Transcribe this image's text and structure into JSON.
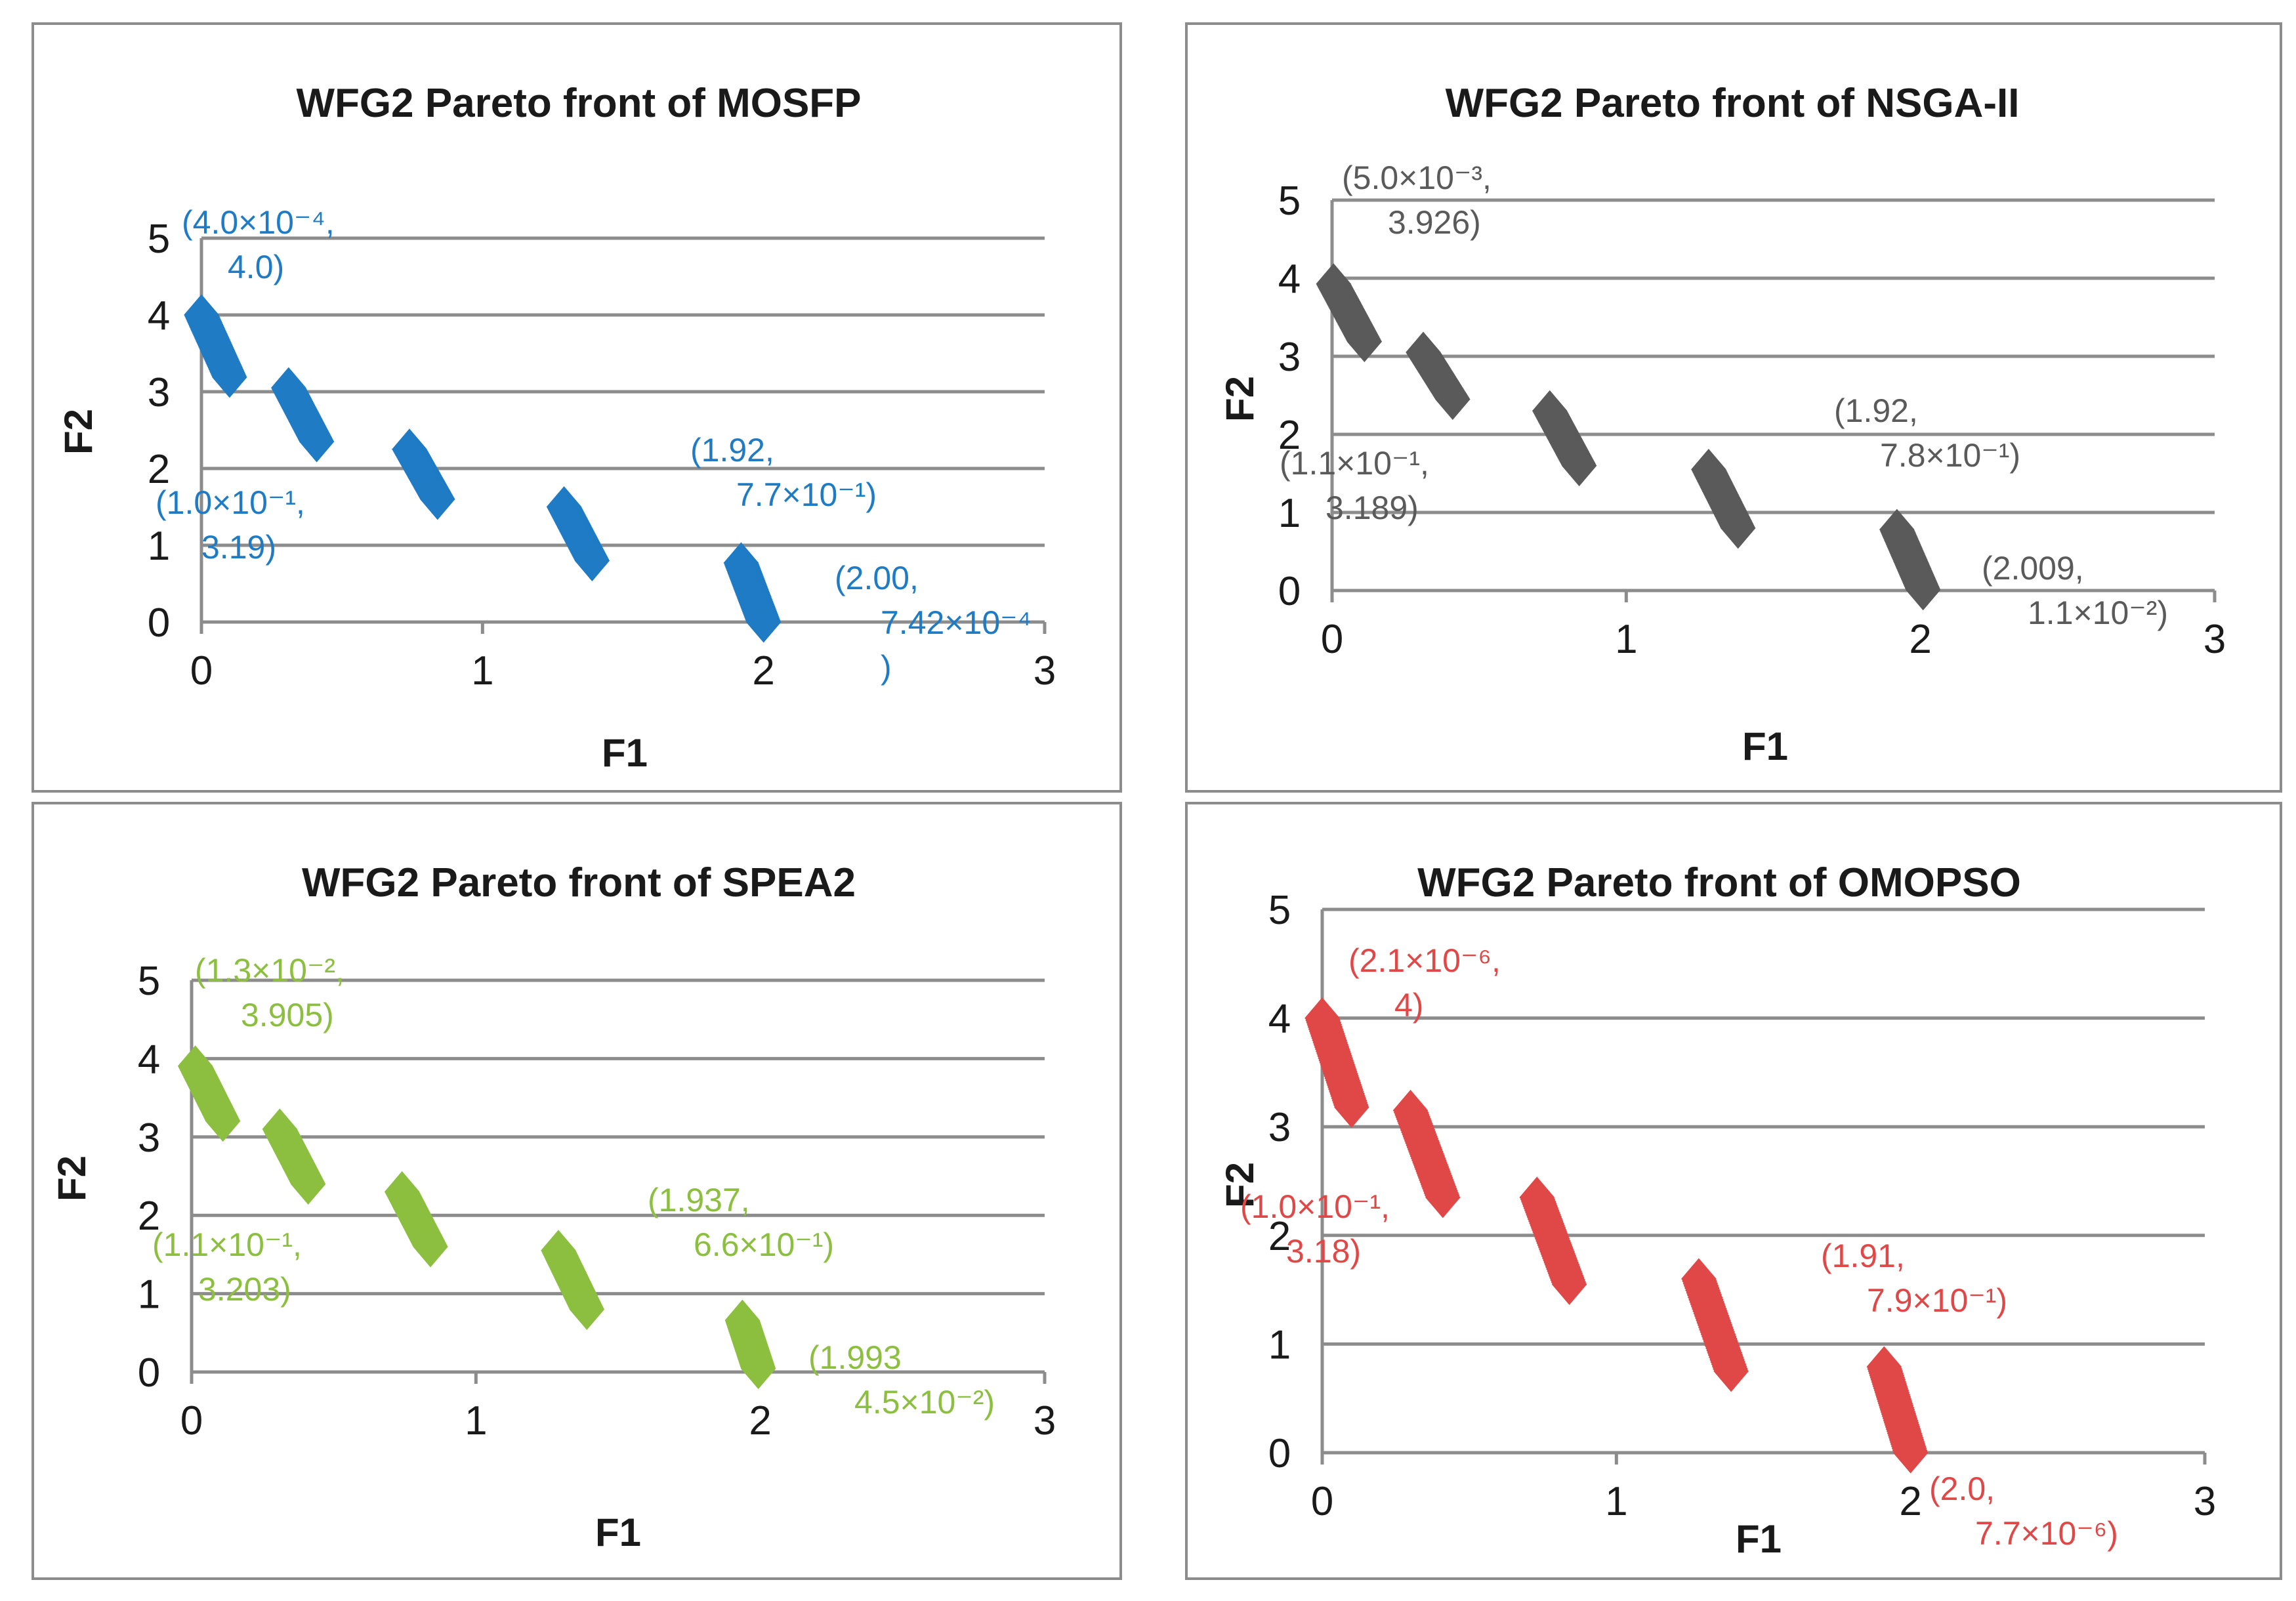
{
  "chart_data": [
    {
      "type": "scatter",
      "title": "WFG2 Pareto front of MOSFP",
      "xlabel": "F1",
      "ylabel": "F2",
      "xlim": [
        0,
        3
      ],
      "ylim": [
        0,
        5
      ],
      "xticks": [
        "0",
        "1",
        "2",
        "3"
      ],
      "yticks": [
        "0",
        "1",
        "2",
        "3",
        "4",
        "5"
      ],
      "color": "#1e7bc4",
      "series": [
        {
          "name": "MOSFP",
          "segments": [
            {
              "x": [
                0.0,
                0.1
              ],
              "y": [
                4.0,
                3.19
              ]
            },
            {
              "x": [
                0.31,
                0.41
              ],
              "y": [
                3.05,
                2.35
              ]
            },
            {
              "x": [
                0.74,
                0.84
              ],
              "y": [
                2.25,
                1.6
              ]
            },
            {
              "x": [
                1.29,
                1.39
              ],
              "y": [
                1.5,
                0.8
              ]
            },
            {
              "x": [
                1.92,
                2.0
              ],
              "y": [
                0.77,
                0.0
              ]
            }
          ]
        }
      ],
      "annotations": [
        {
          "lines": [
            "(4.0×10⁻⁴,",
            "4.0)"
          ]
        },
        {
          "lines": [
            "(1.0×10⁻¹,",
            "3.19)"
          ]
        },
        {
          "lines": [
            "(1.92,",
            "7.7×10⁻¹)"
          ]
        },
        {
          "lines": [
            "(2.00,",
            "7.42×10⁻⁴",
            ")"
          ]
        }
      ]
    },
    {
      "type": "scatter",
      "title": "WFG2 Pareto front of NSGA-II",
      "xlabel": "F1",
      "ylabel": "F2",
      "xlim": [
        0,
        3
      ],
      "ylim": [
        0,
        5
      ],
      "xticks": [
        "0",
        "1",
        "2",
        "3"
      ],
      "yticks": [
        "0",
        "1",
        "2",
        "3",
        "4",
        "5"
      ],
      "color": "#5a5a5a",
      "series": [
        {
          "name": "NSGA-II",
          "segments": [
            {
              "x": [
                0.005,
                0.11
              ],
              "y": [
                3.926,
                3.189
              ]
            },
            {
              "x": [
                0.31,
                0.41
              ],
              "y": [
                3.05,
                2.45
              ]
            },
            {
              "x": [
                0.74,
                0.84
              ],
              "y": [
                2.3,
                1.6
              ]
            },
            {
              "x": [
                1.28,
                1.38
              ],
              "y": [
                1.55,
                0.8
              ]
            },
            {
              "x": [
                1.92,
                2.009
              ],
              "y": [
                0.78,
                0.011
              ]
            }
          ]
        }
      ],
      "annotations": [
        {
          "lines": [
            "(5.0×10⁻³,",
            "3.926)"
          ]
        },
        {
          "lines": [
            "(1.1×10⁻¹,",
            "3.189)"
          ]
        },
        {
          "lines": [
            "(1.92,",
            "7.8×10⁻¹)"
          ]
        },
        {
          "lines": [
            "(2.009,",
            "1.1×10⁻²)"
          ]
        }
      ]
    },
    {
      "type": "scatter",
      "title": "WFG2 Pareto front of SPEA2",
      "xlabel": "F1",
      "ylabel": "F2",
      "xlim": [
        0,
        3
      ],
      "ylim": [
        0,
        5
      ],
      "xticks": [
        "0",
        "1",
        "2",
        "3"
      ],
      "yticks": [
        "0",
        "1",
        "2",
        "3",
        "4",
        "5"
      ],
      "color": "#8cbf3f",
      "series": [
        {
          "name": "SPEA2",
          "segments": [
            {
              "x": [
                0.013,
                0.11
              ],
              "y": [
                3.905,
                3.203
              ]
            },
            {
              "x": [
                0.31,
                0.41
              ],
              "y": [
                3.1,
                2.4
              ]
            },
            {
              "x": [
                0.74,
                0.84
              ],
              "y": [
                2.3,
                1.6
              ]
            },
            {
              "x": [
                1.29,
                1.39
              ],
              "y": [
                1.55,
                0.8
              ]
            },
            {
              "x": [
                1.937,
                1.993
              ],
              "y": [
                0.66,
                0.045
              ]
            }
          ]
        }
      ],
      "annotations": [
        {
          "lines": [
            "(1.3×10⁻²,",
            "3.905)"
          ]
        },
        {
          "lines": [
            "(1.1×10⁻¹,",
            "3.203)"
          ]
        },
        {
          "lines": [
            "(1.937,",
            "6.6×10⁻¹)"
          ]
        },
        {
          "lines": [
            "(1.993",
            "4.5×10⁻²)"
          ]
        }
      ]
    },
    {
      "type": "scatter",
      "title": "WFG2 Pareto front of OMOPSO",
      "xlabel": "F1",
      "ylabel": "F2",
      "xlim": [
        0,
        3
      ],
      "ylim": [
        0,
        5
      ],
      "xticks": [
        "0",
        "1",
        "2",
        "3"
      ],
      "yticks": [
        "0",
        "1",
        "2",
        "3",
        "4",
        "5"
      ],
      "color": "#e04848",
      "series": [
        {
          "name": "OMOPSO",
          "segments": [
            {
              "x": [
                0.0,
                0.1
              ],
              "y": [
                4.0,
                3.18
              ]
            },
            {
              "x": [
                0.3,
                0.41
              ],
              "y": [
                3.15,
                2.35
              ]
            },
            {
              "x": [
                0.73,
                0.84
              ],
              "y": [
                2.35,
                1.55
              ]
            },
            {
              "x": [
                1.28,
                1.39
              ],
              "y": [
                1.6,
                0.75
              ]
            },
            {
              "x": [
                1.91,
                2.0
              ],
              "y": [
                0.79,
                0.0
              ]
            }
          ]
        }
      ],
      "annotations": [
        {
          "lines": [
            "(2.1×10⁻⁶,",
            "4)"
          ]
        },
        {
          "lines": [
            "(1.0×10⁻¹,",
            "3.18)"
          ]
        },
        {
          "lines": [
            "(1.91,",
            "7.9×10⁻¹)"
          ]
        },
        {
          "lines": [
            "(2.0,",
            "7.7×10⁻⁶)"
          ]
        }
      ]
    }
  ]
}
